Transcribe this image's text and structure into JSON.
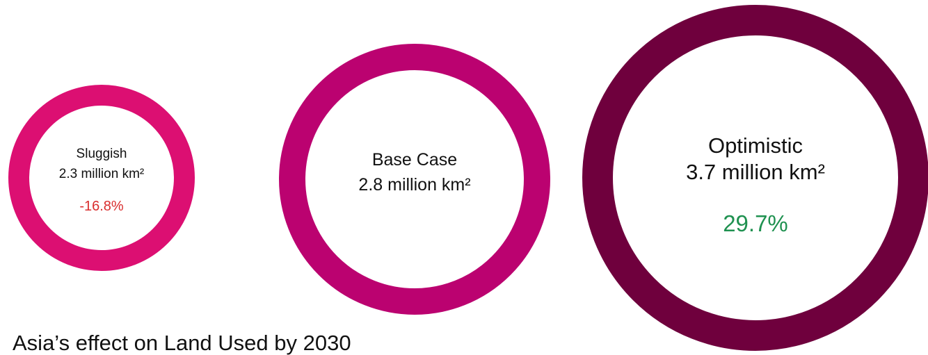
{
  "chart_data": {
    "type": "bubble",
    "title": "Asia’s effect on Land Used by 2030",
    "unit": "million km²",
    "series": [
      {
        "name": "Sluggish",
        "value": 2.3,
        "value_label": "2.3 million km²",
        "change_label": "-16.8%",
        "color": "#DC0F72",
        "change_color": "#D92E2E"
      },
      {
        "name": "Base Case",
        "value": 2.8,
        "value_label": "2.8 million km²",
        "change_label": "",
        "color": "#BB0270",
        "change_color": "#111111"
      },
      {
        "name": "Optimistic",
        "value": 3.7,
        "value_label": "3.7 million km²",
        "change_label": "29.7%",
        "color": "#6F003D",
        "change_color": "#1F9150"
      }
    ]
  }
}
